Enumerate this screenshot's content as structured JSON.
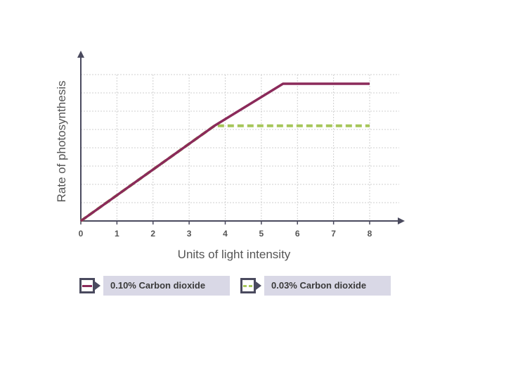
{
  "chart_data": {
    "type": "line",
    "title": "",
    "xlabel": "Units of light intensity",
    "ylabel": "Rate of photosynthesis",
    "x_ticks": [
      0,
      1,
      2,
      3,
      4,
      5,
      6,
      7,
      8
    ],
    "xlim": [
      0,
      8.9
    ],
    "ylim": [
      0,
      8.2
    ],
    "grid": true,
    "legend_position": "bottom",
    "series": [
      {
        "name": "0.10% Carbon dioxide",
        "color": "#8b2a5a",
        "style": "solid",
        "x": [
          0,
          3.7,
          5.6,
          8
        ],
        "y": [
          0,
          5.2,
          7.5,
          7.5
        ]
      },
      {
        "name": "0.03% Carbon dioxide",
        "color": "#a6c65a",
        "style": "dashed",
        "x": [
          0,
          3.7,
          8
        ],
        "y": [
          0,
          5.2,
          5.2
        ]
      }
    ]
  },
  "legend": {
    "items": [
      {
        "label": "0.10% Carbon dioxide"
      },
      {
        "label": "0.03% Carbon dioxide"
      }
    ]
  }
}
